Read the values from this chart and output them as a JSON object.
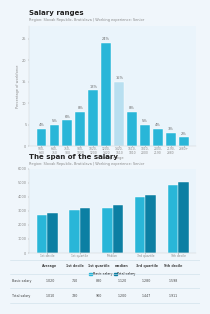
{
  "title1": "Salary ranges",
  "subtitle1": "Region: Slovak Republic, Bratislava | Working experience: Senior",
  "hist_labels": [
    "500-\n640",
    "640-\n750",
    "750-\n900",
    "900-\n1020",
    "1020-\n1200",
    "1200-\n1420",
    "1420-\n1610",
    "1610-\n1810",
    "1810-\n2000",
    "2000-\n2190",
    "2190-\n2380",
    "2380+"
  ],
  "hist_values": [
    4,
    5,
    6,
    8,
    13,
    24,
    15,
    8,
    5,
    4,
    3,
    2
  ],
  "hist_annotations": [
    "4%",
    "5%",
    "6%",
    "8%",
    "13%",
    "24%",
    "15%",
    "8%",
    "5%",
    "4%",
    "3%",
    "2%"
  ],
  "hist_bar_color": "#29b6d8",
  "hist_highlight_idx": 6,
  "hist_highlight_color": "#b8dff0",
  "hist_ylabel": "Percentage of workforce",
  "hist_xlabel": "Salary range",
  "title2": "The span of the salary",
  "subtitle2": "Region: Slovak Republic, Bratislava | Working experience: Senior",
  "span_categories": [
    "1st decile",
    "1st quartile",
    "Median",
    "3rd quartile",
    "9th decile"
  ],
  "span_base": [
    2700,
    3050,
    3250,
    4000,
    4850
  ],
  "span_total": [
    2850,
    3200,
    3400,
    4150,
    5100
  ],
  "span_base_color": "#29b6d8",
  "span_total_color": "#0c7fa3",
  "table_headers": [
    "",
    "Average",
    "1st decile",
    "1st quartile",
    "median",
    "3rd quartile",
    "9th decile"
  ],
  "table_row1": [
    "Basic salary",
    "1,020",
    "710",
    "880",
    "1,120",
    "1,280",
    "1,598"
  ],
  "table_row2": [
    "Total salary",
    "1,010",
    "780",
    "900",
    "1,200",
    "1,447",
    "1,911"
  ],
  "bg_color": "#f0f6fb",
  "chart_bg": "#eaf4fb",
  "panel_bg": "#ffffff"
}
